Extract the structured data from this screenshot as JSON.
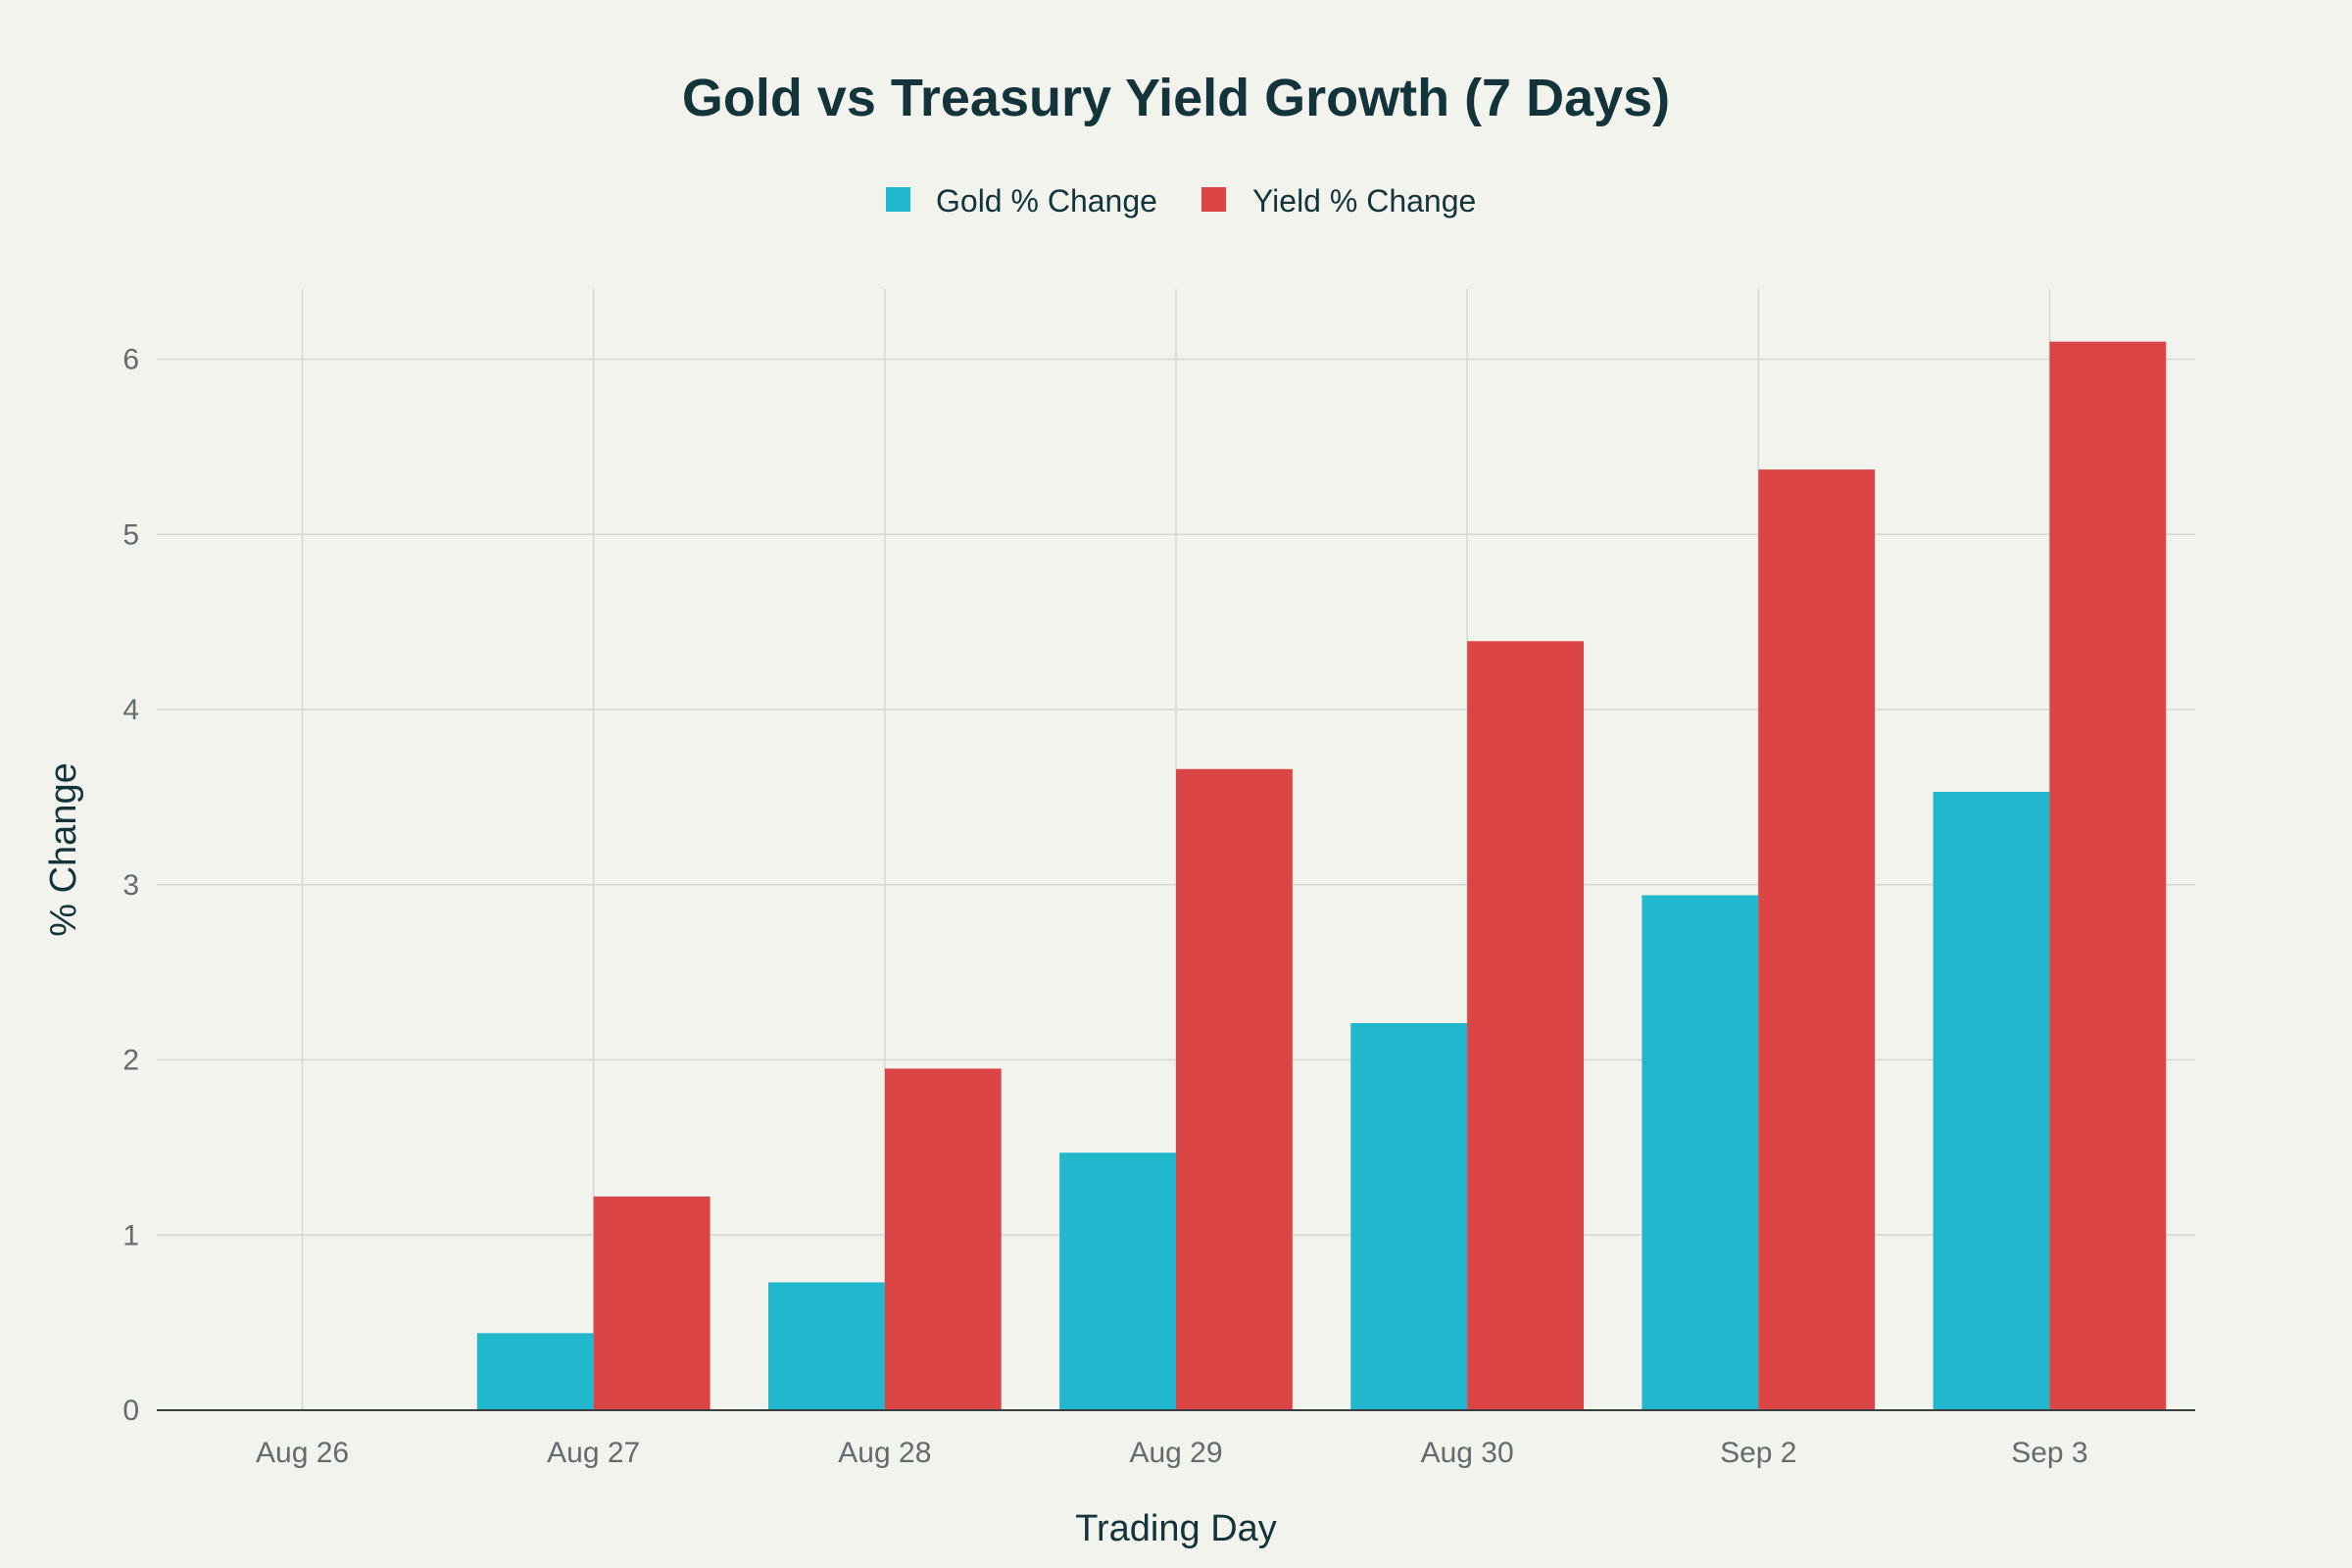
{
  "chart_data": {
    "type": "bar",
    "title": "Gold vs Treasury Yield Growth (7 Days)",
    "xlabel": "Trading Day",
    "ylabel": "% Change",
    "categories": [
      "Aug 26",
      "Aug 27",
      "Aug 28",
      "Aug 29",
      "Aug 30",
      "Sep 2",
      "Sep 3"
    ],
    "series": [
      {
        "name": "Gold % Change",
        "color": "#21b8cd",
        "values": [
          0,
          0.44,
          0.73,
          1.47,
          2.21,
          2.94,
          3.53
        ]
      },
      {
        "name": "Yield % Change",
        "color": "#db4545",
        "values": [
          0,
          1.22,
          1.95,
          3.66,
          4.39,
          5.37,
          6.1
        ]
      }
    ],
    "ylim": [
      0,
      6.4
    ],
    "yticks": [
      0,
      1,
      2,
      3,
      4,
      5,
      6
    ],
    "grid": true,
    "legend_position": "top-center",
    "barmode": "grouped"
  }
}
